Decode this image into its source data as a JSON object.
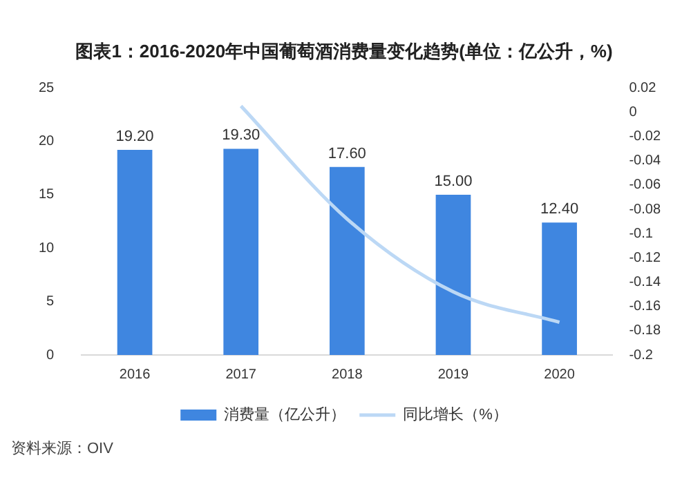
{
  "chart_data": {
    "type": "bar",
    "title": "图表1：2016-2020年中国葡萄酒消费量变化趋势(单位：亿公升，%)",
    "categories": [
      "2016",
      "2017",
      "2018",
      "2019",
      "2020"
    ],
    "series": [
      {
        "name": "消费量（亿公升）",
        "color": "#3f86e0",
        "values": [
          19.2,
          19.3,
          17.6,
          15.0,
          12.4
        ],
        "value_labels": [
          "19.20",
          "19.30",
          "17.60",
          "15.00",
          "12.40"
        ]
      },
      {
        "name": "同比增长（%）",
        "type": "line",
        "axis": "y2",
        "color": "#bcd8f5",
        "values": [
          null,
          0.005,
          -0.088,
          -0.148,
          -0.173
        ]
      }
    ],
    "ylim": [
      0,
      25
    ],
    "yticks": [
      0,
      5,
      10,
      15,
      20,
      25
    ],
    "y2lim": [
      -0.2,
      0.02
    ],
    "y2ticks": [
      -0.2,
      -0.18,
      -0.16,
      -0.14,
      -0.12,
      -0.1,
      -0.08,
      -0.06,
      -0.04,
      -0.02,
      0,
      0.02
    ],
    "grid": false,
    "legend": "bottom",
    "marker": "none",
    "line_style": "solid",
    "annotations": [
      "资料来源：OIV"
    ]
  }
}
